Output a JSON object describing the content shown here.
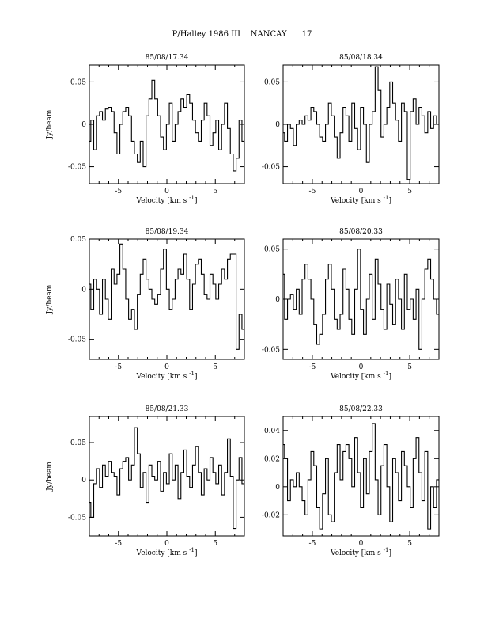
{
  "page_title": "P/Halley 1986 III    NANCAY      17",
  "chart_data": [
    {
      "type": "line",
      "title": "85/08/17.34",
      "xlabel": "Velocity [km s",
      "xlabel_sup": "-1",
      "xlabel_end": "]",
      "ylabel": "Jy/beam",
      "xlim": [
        -8,
        8
      ],
      "ylim": [
        -0.07,
        0.07
      ],
      "xticks": [
        -5,
        0,
        5
      ],
      "xtick_labels": [
        "-5",
        "0",
        "5"
      ],
      "yticks": [
        -0.05,
        0,
        0.05
      ],
      "ytick_labels": [
        "-0.05",
        "0",
        "0.05"
      ],
      "series": [
        {
          "x": [
            -8.0,
            -7.7,
            -7.4,
            -7.1,
            -6.8,
            -6.5,
            -6.2,
            -5.9,
            -5.6,
            -5.3,
            -5.0,
            -4.7,
            -4.4,
            -4.1,
            -3.8,
            -3.5,
            -3.2,
            -2.9,
            -2.6,
            -2.3,
            -2.0,
            -1.7,
            -1.4,
            -1.1,
            -0.8,
            -0.5,
            -0.2,
            0.1,
            0.4,
            0.7,
            1.0,
            1.3,
            1.6,
            1.9,
            2.2,
            2.5,
            2.8,
            3.1,
            3.4,
            3.7,
            4.0,
            4.3,
            4.6,
            4.9,
            5.2,
            5.5,
            5.8,
            6.1,
            6.4,
            6.7,
            7.0,
            7.3,
            7.6,
            7.9
          ],
          "y": [
            -0.02,
            0.005,
            -0.03,
            0.01,
            0.015,
            0.005,
            0.018,
            0.02,
            0.015,
            -0.01,
            -0.035,
            0.0,
            0.015,
            0.02,
            0.01,
            -0.02,
            -0.035,
            -0.045,
            -0.02,
            -0.05,
            0.01,
            0.03,
            0.052,
            0.03,
            0.01,
            -0.015,
            -0.03,
            0.0,
            0.025,
            -0.02,
            0.0,
            0.015,
            0.03,
            0.02,
            0.035,
            0.025,
            0.005,
            -0.01,
            -0.02,
            0.005,
            0.025,
            0.01,
            -0.025,
            -0.01,
            0.005,
            -0.03,
            0.0,
            0.025,
            -0.005,
            -0.035,
            -0.055,
            -0.04,
            0.005,
            -0.02
          ]
        }
      ]
    },
    {
      "type": "line",
      "title": "85/08/18.34",
      "xlabel": "Velocity [km s",
      "xlabel_sup": "-1",
      "xlabel_end": "]",
      "ylabel": "",
      "xlim": [
        -8,
        8
      ],
      "ylim": [
        -0.07,
        0.07
      ],
      "xticks": [
        -5,
        0,
        5
      ],
      "xtick_labels": [
        "-5",
        "0",
        "5"
      ],
      "yticks": [
        -0.05,
        0,
        0.05
      ],
      "ytick_labels": [
        "-0.05",
        "0",
        "0.05"
      ],
      "series": [
        {
          "x": [
            -8.0,
            -7.7,
            -7.4,
            -7.1,
            -6.8,
            -6.5,
            -6.2,
            -5.9,
            -5.6,
            -5.3,
            -5.0,
            -4.7,
            -4.4,
            -4.1,
            -3.8,
            -3.5,
            -3.2,
            -2.9,
            -2.6,
            -2.3,
            -2.0,
            -1.7,
            -1.4,
            -1.1,
            -0.8,
            -0.5,
            -0.2,
            0.1,
            0.4,
            0.7,
            1.0,
            1.3,
            1.6,
            1.9,
            2.2,
            2.5,
            2.8,
            3.1,
            3.4,
            3.7,
            4.0,
            4.3,
            4.6,
            4.9,
            5.2,
            5.5,
            5.8,
            6.1,
            6.4,
            6.7,
            7.0,
            7.3,
            7.6,
            7.9
          ],
          "y": [
            -0.01,
            -0.02,
            0.0,
            -0.005,
            -0.025,
            0.0,
            0.005,
            0.0,
            0.01,
            0.005,
            0.02,
            0.015,
            0.0,
            -0.015,
            -0.02,
            0.0,
            0.025,
            0.01,
            -0.015,
            -0.04,
            -0.01,
            0.02,
            0.01,
            -0.02,
            0.025,
            -0.005,
            -0.03,
            0.02,
            0.0,
            -0.045,
            0.0,
            0.015,
            0.068,
            0.04,
            -0.015,
            0.0,
            0.02,
            0.05,
            0.025,
            0.005,
            -0.02,
            0.025,
            0.015,
            -0.065,
            0.015,
            0.03,
            0.0,
            0.02,
            0.01,
            -0.01,
            0.015,
            -0.005,
            0.01,
            0.0
          ]
        }
      ]
    },
    {
      "type": "line",
      "title": "85/08/19.34",
      "xlabel": "Velocity [km s",
      "xlabel_sup": "-1",
      "xlabel_end": "]",
      "ylabel": "Jy/beam",
      "xlim": [
        -8,
        8
      ],
      "ylim": [
        -0.07,
        0.05
      ],
      "xticks": [
        -5,
        0,
        5
      ],
      "xtick_labels": [
        "-5",
        "0",
        "5"
      ],
      "yticks": [
        -0.05,
        0,
        0.05
      ],
      "ytick_labels": [
        "-0.05",
        "0",
        "0.05"
      ],
      "series": [
        {
          "x": [
            -8.0,
            -7.7,
            -7.4,
            -7.1,
            -6.8,
            -6.5,
            -6.2,
            -5.9,
            -5.6,
            -5.3,
            -5.0,
            -4.7,
            -4.4,
            -4.1,
            -3.8,
            -3.5,
            -3.2,
            -2.9,
            -2.6,
            -2.3,
            -2.0,
            -1.7,
            -1.4,
            -1.1,
            -0.8,
            -0.5,
            -0.2,
            0.1,
            0.4,
            0.7,
            1.0,
            1.3,
            1.6,
            1.9,
            2.2,
            2.5,
            2.8,
            3.1,
            3.4,
            3.7,
            4.0,
            4.3,
            4.6,
            4.9,
            5.2,
            5.5,
            5.8,
            6.1,
            6.4,
            6.7,
            7.0,
            7.3,
            7.6,
            7.9
          ],
          "y": [
            0.005,
            -0.02,
            0.01,
            0.0,
            -0.025,
            0.01,
            -0.01,
            -0.03,
            0.02,
            0.005,
            0.015,
            0.045,
            0.02,
            -0.01,
            -0.03,
            -0.02,
            -0.04,
            -0.005,
            0.015,
            0.03,
            0.01,
            0.0,
            -0.01,
            -0.015,
            -0.005,
            0.02,
            0.04,
            0.0,
            -0.02,
            -0.01,
            0.01,
            0.02,
            0.015,
            0.035,
            0.01,
            -0.02,
            0.005,
            0.025,
            0.03,
            0.015,
            -0.005,
            -0.01,
            0.015,
            0.005,
            -0.01,
            0.005,
            0.02,
            0.01,
            0.03,
            0.035,
            0.035,
            -0.06,
            -0.025,
            -0.04
          ]
        }
      ]
    },
    {
      "type": "line",
      "title": "85/08/20.33",
      "xlabel": "Velocity [km s",
      "xlabel_sup": "-1",
      "xlabel_end": "]",
      "ylabel": "",
      "xlim": [
        -8,
        8
      ],
      "ylim": [
        -0.06,
        0.06
      ],
      "xticks": [
        -5,
        0,
        5
      ],
      "xtick_labels": [
        "-5",
        "0",
        "5"
      ],
      "yticks": [
        -0.05,
        0,
        0.05
      ],
      "ytick_labels": [
        "-0.05",
        "0",
        "0.05"
      ],
      "series": [
        {
          "x": [
            -8.0,
            -7.7,
            -7.4,
            -7.1,
            -6.8,
            -6.5,
            -6.2,
            -5.9,
            -5.6,
            -5.3,
            -5.0,
            -4.7,
            -4.4,
            -4.1,
            -3.8,
            -3.5,
            -3.2,
            -2.9,
            -2.6,
            -2.3,
            -2.0,
            -1.7,
            -1.4,
            -1.1,
            -0.8,
            -0.5,
            -0.2,
            0.1,
            0.4,
            0.7,
            1.0,
            1.3,
            1.6,
            1.9,
            2.2,
            2.5,
            2.8,
            3.1,
            3.4,
            3.7,
            4.0,
            4.3,
            4.6,
            4.9,
            5.2,
            5.5,
            5.8,
            6.1,
            6.4,
            6.7,
            7.0,
            7.3,
            7.6,
            7.9
          ],
          "y": [
            0.025,
            -0.02,
            0.0,
            0.005,
            -0.01,
            0.01,
            -0.015,
            0.02,
            0.035,
            0.02,
            0.0,
            -0.025,
            -0.045,
            -0.035,
            -0.015,
            0.02,
            0.035,
            0.01,
            -0.02,
            -0.03,
            -0.015,
            0.03,
            0.01,
            -0.02,
            -0.035,
            0.01,
            0.05,
            -0.01,
            -0.035,
            0.0,
            0.025,
            -0.02,
            0.04,
            0.015,
            -0.01,
            -0.03,
            0.015,
            -0.005,
            -0.025,
            0.02,
            0.0,
            -0.03,
            0.025,
            -0.01,
            0.0,
            -0.02,
            0.01,
            -0.05,
            0.0,
            0.03,
            0.04,
            0.02,
            0.0,
            -0.015
          ]
        }
      ]
    },
    {
      "type": "line",
      "title": "85/08/21.33",
      "xlabel": "Velocity [km s",
      "xlabel_sup": "-1",
      "xlabel_end": "]",
      "ylabel": "Jy/beam",
      "xlim": [
        -8,
        8
      ],
      "ylim": [
        -0.075,
        0.085
      ],
      "xticks": [
        -5,
        0,
        5
      ],
      "xtick_labels": [
        "-5",
        "0",
        "5"
      ],
      "yticks": [
        -0.05,
        0,
        0.05
      ],
      "ytick_labels": [
        "-0.05",
        "0",
        "0.05"
      ],
      "series": [
        {
          "x": [
            -8.0,
            -7.7,
            -7.4,
            -7.1,
            -6.8,
            -6.5,
            -6.2,
            -5.9,
            -5.6,
            -5.3,
            -5.0,
            -4.7,
            -4.4,
            -4.1,
            -3.8,
            -3.5,
            -3.2,
            -2.9,
            -2.6,
            -2.3,
            -2.0,
            -1.7,
            -1.4,
            -1.1,
            -0.8,
            -0.5,
            -0.2,
            0.1,
            0.4,
            0.7,
            1.0,
            1.3,
            1.6,
            1.9,
            2.2,
            2.5,
            2.8,
            3.1,
            3.4,
            3.7,
            4.0,
            4.3,
            4.6,
            4.9,
            5.2,
            5.5,
            5.8,
            6.1,
            6.4,
            6.7,
            7.0,
            7.3,
            7.6,
            7.9
          ],
          "y": [
            -0.03,
            -0.05,
            -0.005,
            0.015,
            -0.01,
            0.02,
            0.005,
            0.025,
            0.01,
            0.005,
            -0.02,
            0.015,
            0.025,
            0.03,
            0.0,
            0.02,
            0.07,
            0.035,
            -0.01,
            0.01,
            -0.03,
            0.02,
            0.005,
            0.0,
            0.025,
            -0.015,
            0.01,
            -0.005,
            0.035,
            0.0,
            0.02,
            -0.025,
            0.01,
            0.04,
            0.005,
            -0.01,
            0.02,
            0.045,
            0.01,
            -0.02,
            0.015,
            0.0,
            0.03,
            0.01,
            -0.005,
            0.02,
            -0.02,
            0.01,
            0.055,
            0.005,
            -0.065,
            0.0,
            0.03,
            -0.005
          ]
        }
      ]
    },
    {
      "type": "line",
      "title": "85/08/22.33",
      "xlabel": "Velocity [km s",
      "xlabel_sup": "-1",
      "xlabel_end": "]",
      "ylabel": "",
      "xlim": [
        -8,
        8
      ],
      "ylim": [
        -0.035,
        0.05
      ],
      "xticks": [
        -5,
        0,
        5
      ],
      "xtick_labels": [
        "-5",
        "0",
        "5"
      ],
      "yticks": [
        -0.02,
        0,
        0.02,
        0.04
      ],
      "ytick_labels": [
        "-0.02",
        "0",
        "0.02",
        "0.04"
      ],
      "series": [
        {
          "x": [
            -8.0,
            -7.7,
            -7.4,
            -7.1,
            -6.8,
            -6.5,
            -6.2,
            -5.9,
            -5.6,
            -5.3,
            -5.0,
            -4.7,
            -4.4,
            -4.1,
            -3.8,
            -3.5,
            -3.2,
            -2.9,
            -2.6,
            -2.3,
            -2.0,
            -1.7,
            -1.4,
            -1.1,
            -0.8,
            -0.5,
            -0.2,
            0.1,
            0.4,
            0.7,
            1.0,
            1.3,
            1.6,
            1.9,
            2.2,
            2.5,
            2.8,
            3.1,
            3.4,
            3.7,
            4.0,
            4.3,
            4.6,
            4.9,
            5.2,
            5.5,
            5.8,
            6.1,
            6.4,
            6.7,
            7.0,
            7.3,
            7.6,
            7.9
          ],
          "y": [
            0.03,
            0.02,
            -0.01,
            0.005,
            0.0,
            0.01,
            0.0,
            -0.01,
            -0.02,
            0.005,
            0.025,
            0.015,
            -0.015,
            -0.03,
            -0.005,
            0.02,
            -0.02,
            -0.025,
            0.01,
            0.03,
            0.005,
            0.025,
            0.03,
            0.02,
            0.0,
            0.035,
            0.01,
            -0.015,
            0.02,
            -0.005,
            0.025,
            0.045,
            0.005,
            -0.02,
            0.015,
            0.03,
            0.0,
            -0.025,
            0.02,
            0.01,
            -0.01,
            0.025,
            0.015,
            0.0,
            -0.015,
            0.02,
            0.035,
            0.01,
            -0.01,
            0.025,
            -0.03,
            0.0,
            -0.015,
            0.005
          ]
        }
      ]
    }
  ]
}
